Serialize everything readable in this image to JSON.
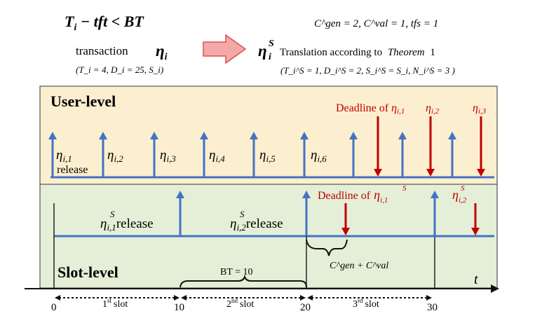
{
  "top": {
    "condition": {
      "lhs": "T",
      "sub": "i",
      "mid": " − tft < BT"
    },
    "params": "C^gen = 2, C^val = 1, tfs = 1",
    "transaction_word": "transaction",
    "eta_main": "η",
    "eta_main_sub": "i",
    "orig_params": "(T_i = 4, D_i = 25, S_i)",
    "trans_eta": "η",
    "trans_sub": "i",
    "trans_sup": "S",
    "translation_text": "Translation according to",
    "theorem_text": "Theorem",
    "theorem_num": "1",
    "trans_params": "(T_i^S = 1, D_i^S = 2, S_i^S = S_i, N_i^S = 3 )"
  },
  "user_level": {
    "title": "User-level",
    "deadline_label": "Deadline of",
    "deadline_subs": [
      "i,1",
      "i,2",
      "i,3"
    ],
    "release_subs": [
      "i,1",
      "i,2",
      "i,3",
      "i,4",
      "i,5",
      "i,6"
    ],
    "release_word": "release"
  },
  "slot_level": {
    "title": "Slot-level",
    "releases": [
      {
        "sub": "i,1",
        "text": "release"
      },
      {
        "sub": "i,2",
        "text": "release"
      }
    ],
    "deadline_label": "Deadline of",
    "deadline_subs": [
      "i,1",
      "i,2"
    ],
    "brace_label": "C^gen + C^val",
    "bt_label": "BT = 10",
    "axis_label": "t"
  },
  "axis": {
    "ticks": [
      "0",
      "10",
      "20",
      "30"
    ],
    "slots": [
      {
        "ord": "1",
        "sup": "st",
        "word": "slot"
      },
      {
        "ord": "2",
        "sup": "nd",
        "word": "slot"
      },
      {
        "ord": "3",
        "sup": "rd",
        "word": "slot"
      }
    ]
  },
  "colors": {
    "user_bg": "#fcefcf",
    "slot_bg": "#e5efd8",
    "blue": "#4472c4",
    "red": "#c00000",
    "arrow_fill": "#f4a8a8",
    "arrow_stroke": "#d9534f"
  }
}
